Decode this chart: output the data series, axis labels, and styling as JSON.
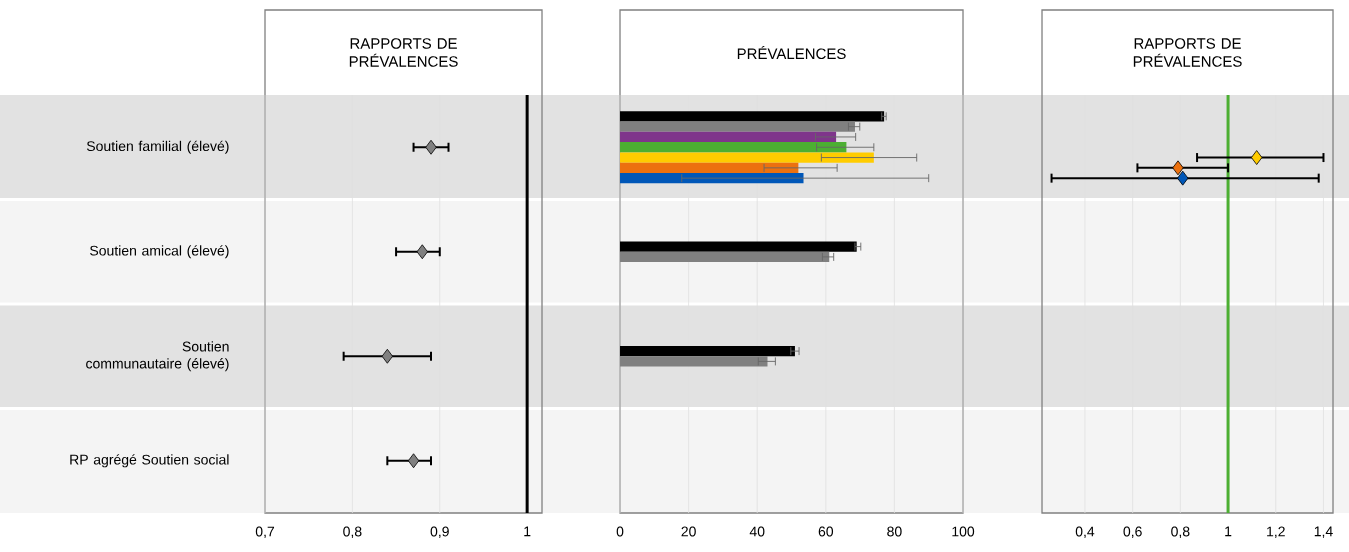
{
  "chart_data": [
    {
      "type": "scatter",
      "orientation": "horizontal",
      "title": "RAPPORTS DE PRÉVALENCES",
      "categories": [
        "Soutien familial (élevé)",
        "Soutien amical (élevé)",
        "Soutien communautaire (élevé)",
        "RP agrégé Soutien social"
      ],
      "values": [
        0.89,
        0.88,
        0.84,
        0.87
      ],
      "errors": [
        [
          0.87,
          0.91
        ],
        [
          0.85,
          0.9
        ],
        [
          0.79,
          0.89
        ],
        [
          0.84,
          0.89
        ]
      ],
      "color": "#808080",
      "marker": "diamond",
      "xlim": [
        0.7,
        1.017
      ],
      "xticks": [
        {
          "value": 0.7,
          "label": "0,7"
        },
        {
          "value": 0.8,
          "label": "0,8"
        },
        {
          "value": 0.9,
          "label": "0,9"
        },
        1
      ],
      "grid": "x",
      "ref_lines": [
        {
          "axis": "x",
          "value": 1,
          "color": "#000000"
        }
      ]
    },
    {
      "type": "bar",
      "orientation": "horizontal",
      "title": "PRÉVALENCES",
      "categories": [
        null,
        null,
        null,
        null
      ],
      "tick_labels": "x",
      "series": [
        {
          "color": "#000000",
          "values": [
            77,
            69,
            51,
            null
          ],
          "errors": [
            [
              76.3,
              77.6
            ],
            [
              68.5,
              70.2
            ],
            [
              49.8,
              52.2
            ],
            null
          ]
        },
        {
          "color": "#808080",
          "values": [
            68.5,
            61,
            43,
            null
          ],
          "errors": [
            [
              66.6,
              69.9
            ],
            [
              59,
              62.3
            ],
            [
              40.3,
              45.3
            ],
            null
          ]
        },
        {
          "color": "#7f358b",
          "values": [
            63,
            null,
            null,
            null
          ],
          "errors": [
            [
              57,
              68.7
            ],
            null,
            null,
            null
          ]
        },
        {
          "color": "#4caf32",
          "values": [
            66,
            null,
            null,
            null
          ],
          "errors": [
            [
              57.3,
              74
            ],
            null,
            null,
            null
          ]
        },
        {
          "color": "#ffcc00",
          "values": [
            74,
            null,
            null,
            null
          ],
          "errors": [
            [
              58.7,
              86.5
            ],
            null,
            null,
            null
          ]
        },
        {
          "color": "#ec710f",
          "values": [
            52,
            null,
            null,
            null
          ],
          "errors": [
            [
              42,
              63.3
            ],
            null,
            null,
            null
          ]
        },
        {
          "color": "#0057b8",
          "values": [
            53.5,
            null,
            null,
            null
          ],
          "errors": [
            [
              18,
              90
            ],
            null,
            null,
            null
          ]
        }
      ],
      "xlim": [
        0,
        100
      ],
      "xticks": [
        0,
        20,
        40,
        60,
        80,
        100
      ],
      "grid": "x"
    },
    {
      "type": "scatter",
      "orientation": "horizontal",
      "title": "RAPPORTS DE PRÉVALENCES",
      "categories": [
        null,
        null,
        null,
        null
      ],
      "tick_labels": "x",
      "series": [
        {
          "color": "#ffcc00",
          "values": [
            1.12,
            null,
            null,
            null
          ],
          "errors": [
            [
              0.87,
              1.4
            ],
            null,
            null,
            null
          ]
        },
        {
          "color": "#ec710f",
          "values": [
            0.79,
            null,
            null,
            null
          ],
          "errors": [
            [
              0.62,
              1.0
            ],
            null,
            null,
            null
          ]
        },
        {
          "color": "#0057b8",
          "values": [
            0.81,
            null,
            null,
            null
          ],
          "errors": [
            [
              0.26,
              1.38
            ],
            null,
            null,
            null
          ]
        }
      ],
      "marker": "diamond",
      "xlim": [
        0.22,
        1.44
      ],
      "xticks": [
        {
          "value": 0.4,
          "label": "0,4"
        },
        {
          "value": 0.6,
          "label": "0,6"
        },
        {
          "value": 0.8,
          "label": "0,8"
        },
        1,
        {
          "value": 1.2,
          "label": "1,2"
        },
        {
          "value": 1.4,
          "label": "1,4"
        }
      ],
      "grid": "x",
      "ref_lines": [
        {
          "axis": "x",
          "value": 1,
          "color": "#4caf32"
        }
      ]
    }
  ]
}
